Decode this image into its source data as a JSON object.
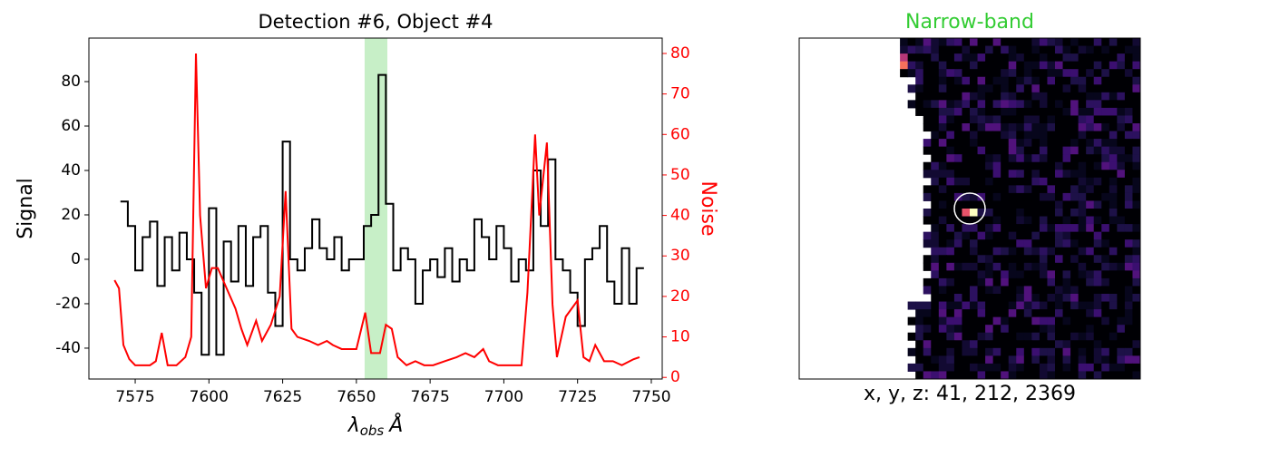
{
  "chart_data": {
    "type": "line",
    "title": "Detection #6, Object #4",
    "x_label_main": "λ",
    "x_label_sub": "obs",
    "x_label_unit": "Å",
    "y_label": "Signal",
    "y2_label": "Noise",
    "xlim": [
      7559.3,
      7753.7
    ],
    "xticks": [
      7575,
      7600,
      7625,
      7650,
      7675,
      7700,
      7725,
      7750
    ],
    "ylim": [
      -53.9,
      99.6
    ],
    "yticks": [
      -40,
      -20,
      0,
      20,
      40,
      60,
      80
    ],
    "y2lim": [
      -0.4,
      83.8
    ],
    "y2ticks": [
      0,
      10,
      20,
      30,
      40,
      50,
      60,
      70,
      80
    ],
    "y2_color": "#ff0000",
    "band": {
      "xlim": [
        7652.8,
        7660.5
      ],
      "color": "#90e090"
    },
    "series": [
      {
        "name": "Signal",
        "color": "#000000",
        "drawstyle": "steps",
        "x": [
          7570,
          7572.5,
          7575,
          7577.5,
          7580,
          7582.5,
          7585,
          7587.5,
          7590,
          7592.5,
          7595,
          7597.5,
          7600,
          7602.5,
          7605,
          7607.5,
          7610,
          7612.5,
          7615,
          7617.5,
          7620,
          7622.5,
          7625,
          7627.5,
          7630,
          7632.5,
          7635,
          7637.5,
          7640,
          7642.5,
          7645,
          7647.5,
          7650,
          7652.5,
          7655,
          7657.5,
          7660,
          7662.5,
          7665,
          7667.5,
          7670,
          7672.5,
          7675,
          7677.5,
          7680,
          7682.5,
          7685,
          7687.5,
          7690,
          7692.5,
          7695,
          7697.5,
          7700,
          7702.5,
          7705,
          7707.5,
          7710,
          7712.5,
          7715,
          7717.5,
          7720,
          7722.5,
          7725,
          7727.5,
          7730,
          7732.5,
          7735,
          7737.5,
          7740,
          7742.5,
          7745
        ],
        "values": [
          26,
          15,
          -5,
          10,
          17,
          -12,
          10,
          -5,
          12,
          0,
          -15,
          -43,
          23,
          -43,
          8,
          -10,
          15,
          -12,
          10,
          15,
          -15,
          -30,
          53,
          0,
          -5,
          5,
          18,
          5,
          0,
          10,
          -5,
          0,
          0,
          15,
          20,
          83,
          25,
          -5,
          5,
          0,
          -20,
          -5,
          0,
          -8,
          5,
          -10,
          0,
          -5,
          18,
          10,
          0,
          15,
          5,
          -10,
          0,
          -5,
          40,
          15,
          45,
          0,
          -5,
          -15,
          -30,
          0,
          5,
          15,
          -10,
          -20,
          5,
          -20,
          -4
        ]
      },
      {
        "name": "Noise",
        "color": "#ff0000",
        "axis": "y2",
        "x": [
          7568,
          7569.5,
          7571,
          7573,
          7575,
          7580,
          7582,
          7584,
          7586,
          7589,
          7592,
          7594,
          7595.6,
          7597,
          7599,
          7601,
          7603,
          7606,
          7609,
          7611,
          7613,
          7616,
          7618,
          7621,
          7624,
          7626,
          7628,
          7630,
          7634,
          7637,
          7640,
          7642,
          7645,
          7648,
          7650,
          7653,
          7655,
          7658,
          7660,
          7662,
          7664,
          7667,
          7670,
          7673,
          7676,
          7680,
          7684,
          7687,
          7690,
          7693,
          7695,
          7698,
          7702,
          7706,
          7708,
          7710.6,
          7712,
          7714.6,
          7716.5,
          7718,
          7721,
          7725,
          7727,
          7729,
          7731,
          7734,
          7737,
          7740,
          7744,
          7746
        ],
        "values": [
          24,
          22,
          8,
          4.5,
          3,
          3,
          4,
          11,
          3,
          3,
          5,
          10,
          80,
          40,
          22,
          27,
          27,
          22,
          17,
          12,
          8,
          14,
          9,
          13,
          20,
          46,
          12,
          10,
          9,
          8,
          9,
          8,
          7,
          7,
          7,
          16,
          6,
          6,
          13,
          12,
          5,
          3,
          4,
          3,
          3,
          4,
          5,
          6,
          5,
          7,
          4,
          3,
          3,
          3,
          21,
          60,
          40,
          58,
          18,
          5,
          15,
          19,
          5,
          4,
          8,
          4,
          4,
          3,
          4.5,
          5
        ]
      }
    ]
  },
  "image_panel": {
    "title": "Narrow-band",
    "caption": "x, y, z: 41, 212, 2369"
  }
}
